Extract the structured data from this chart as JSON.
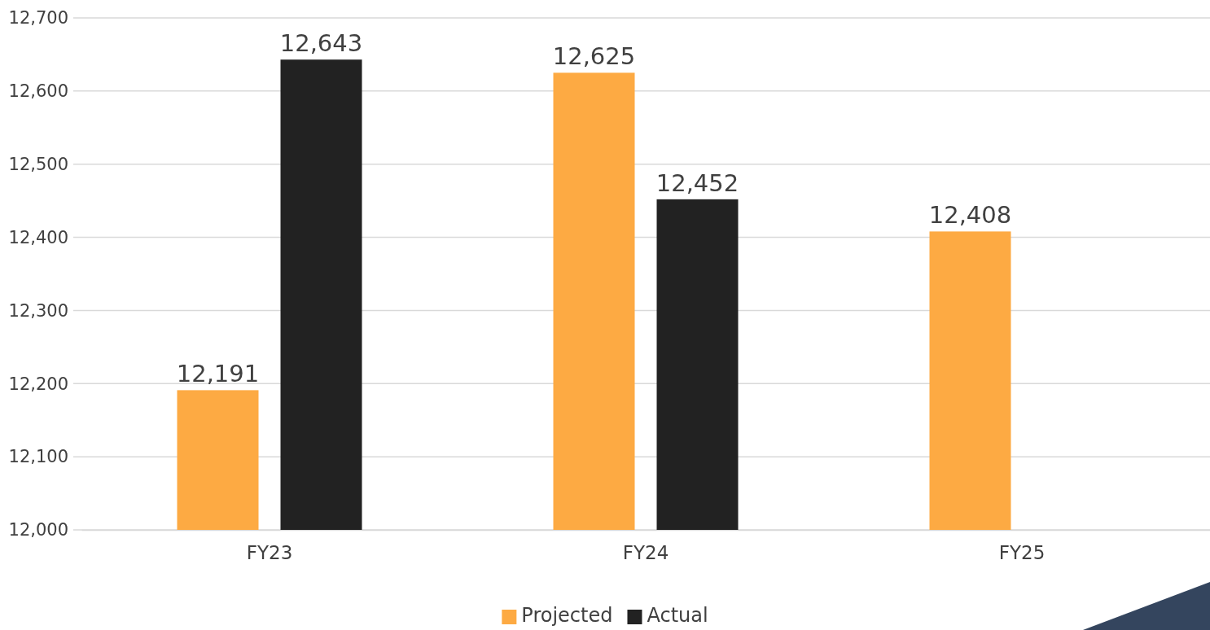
{
  "chart_data": {
    "type": "bar",
    "categories": [
      "FY23",
      "FY24",
      "FY25"
    ],
    "series": [
      {
        "name": "Projected",
        "color": "#fdaa43",
        "values": [
          12191,
          12625,
          12408
        ],
        "value_labels": [
          "12,191",
          "12,625",
          "12,408"
        ]
      },
      {
        "name": "Actual",
        "color": "#222222",
        "values": [
          12643,
          12452,
          null
        ],
        "value_labels": [
          "12,643",
          "12,452",
          null
        ]
      }
    ],
    "ylim": [
      12000,
      12700
    ],
    "yticks": [
      {
        "value": 12000,
        "label": "12,000"
      },
      {
        "value": 12100,
        "label": "12,100"
      },
      {
        "value": 12200,
        "label": "12,200"
      },
      {
        "value": 12300,
        "label": "12,300"
      },
      {
        "value": 12400,
        "label": "12,400"
      },
      {
        "value": 12500,
        "label": "12,500"
      },
      {
        "value": 12600,
        "label": "12,600"
      },
      {
        "value": 12700,
        "label": "12,700"
      }
    ],
    "grid": "y",
    "legend": "bottom"
  }
}
